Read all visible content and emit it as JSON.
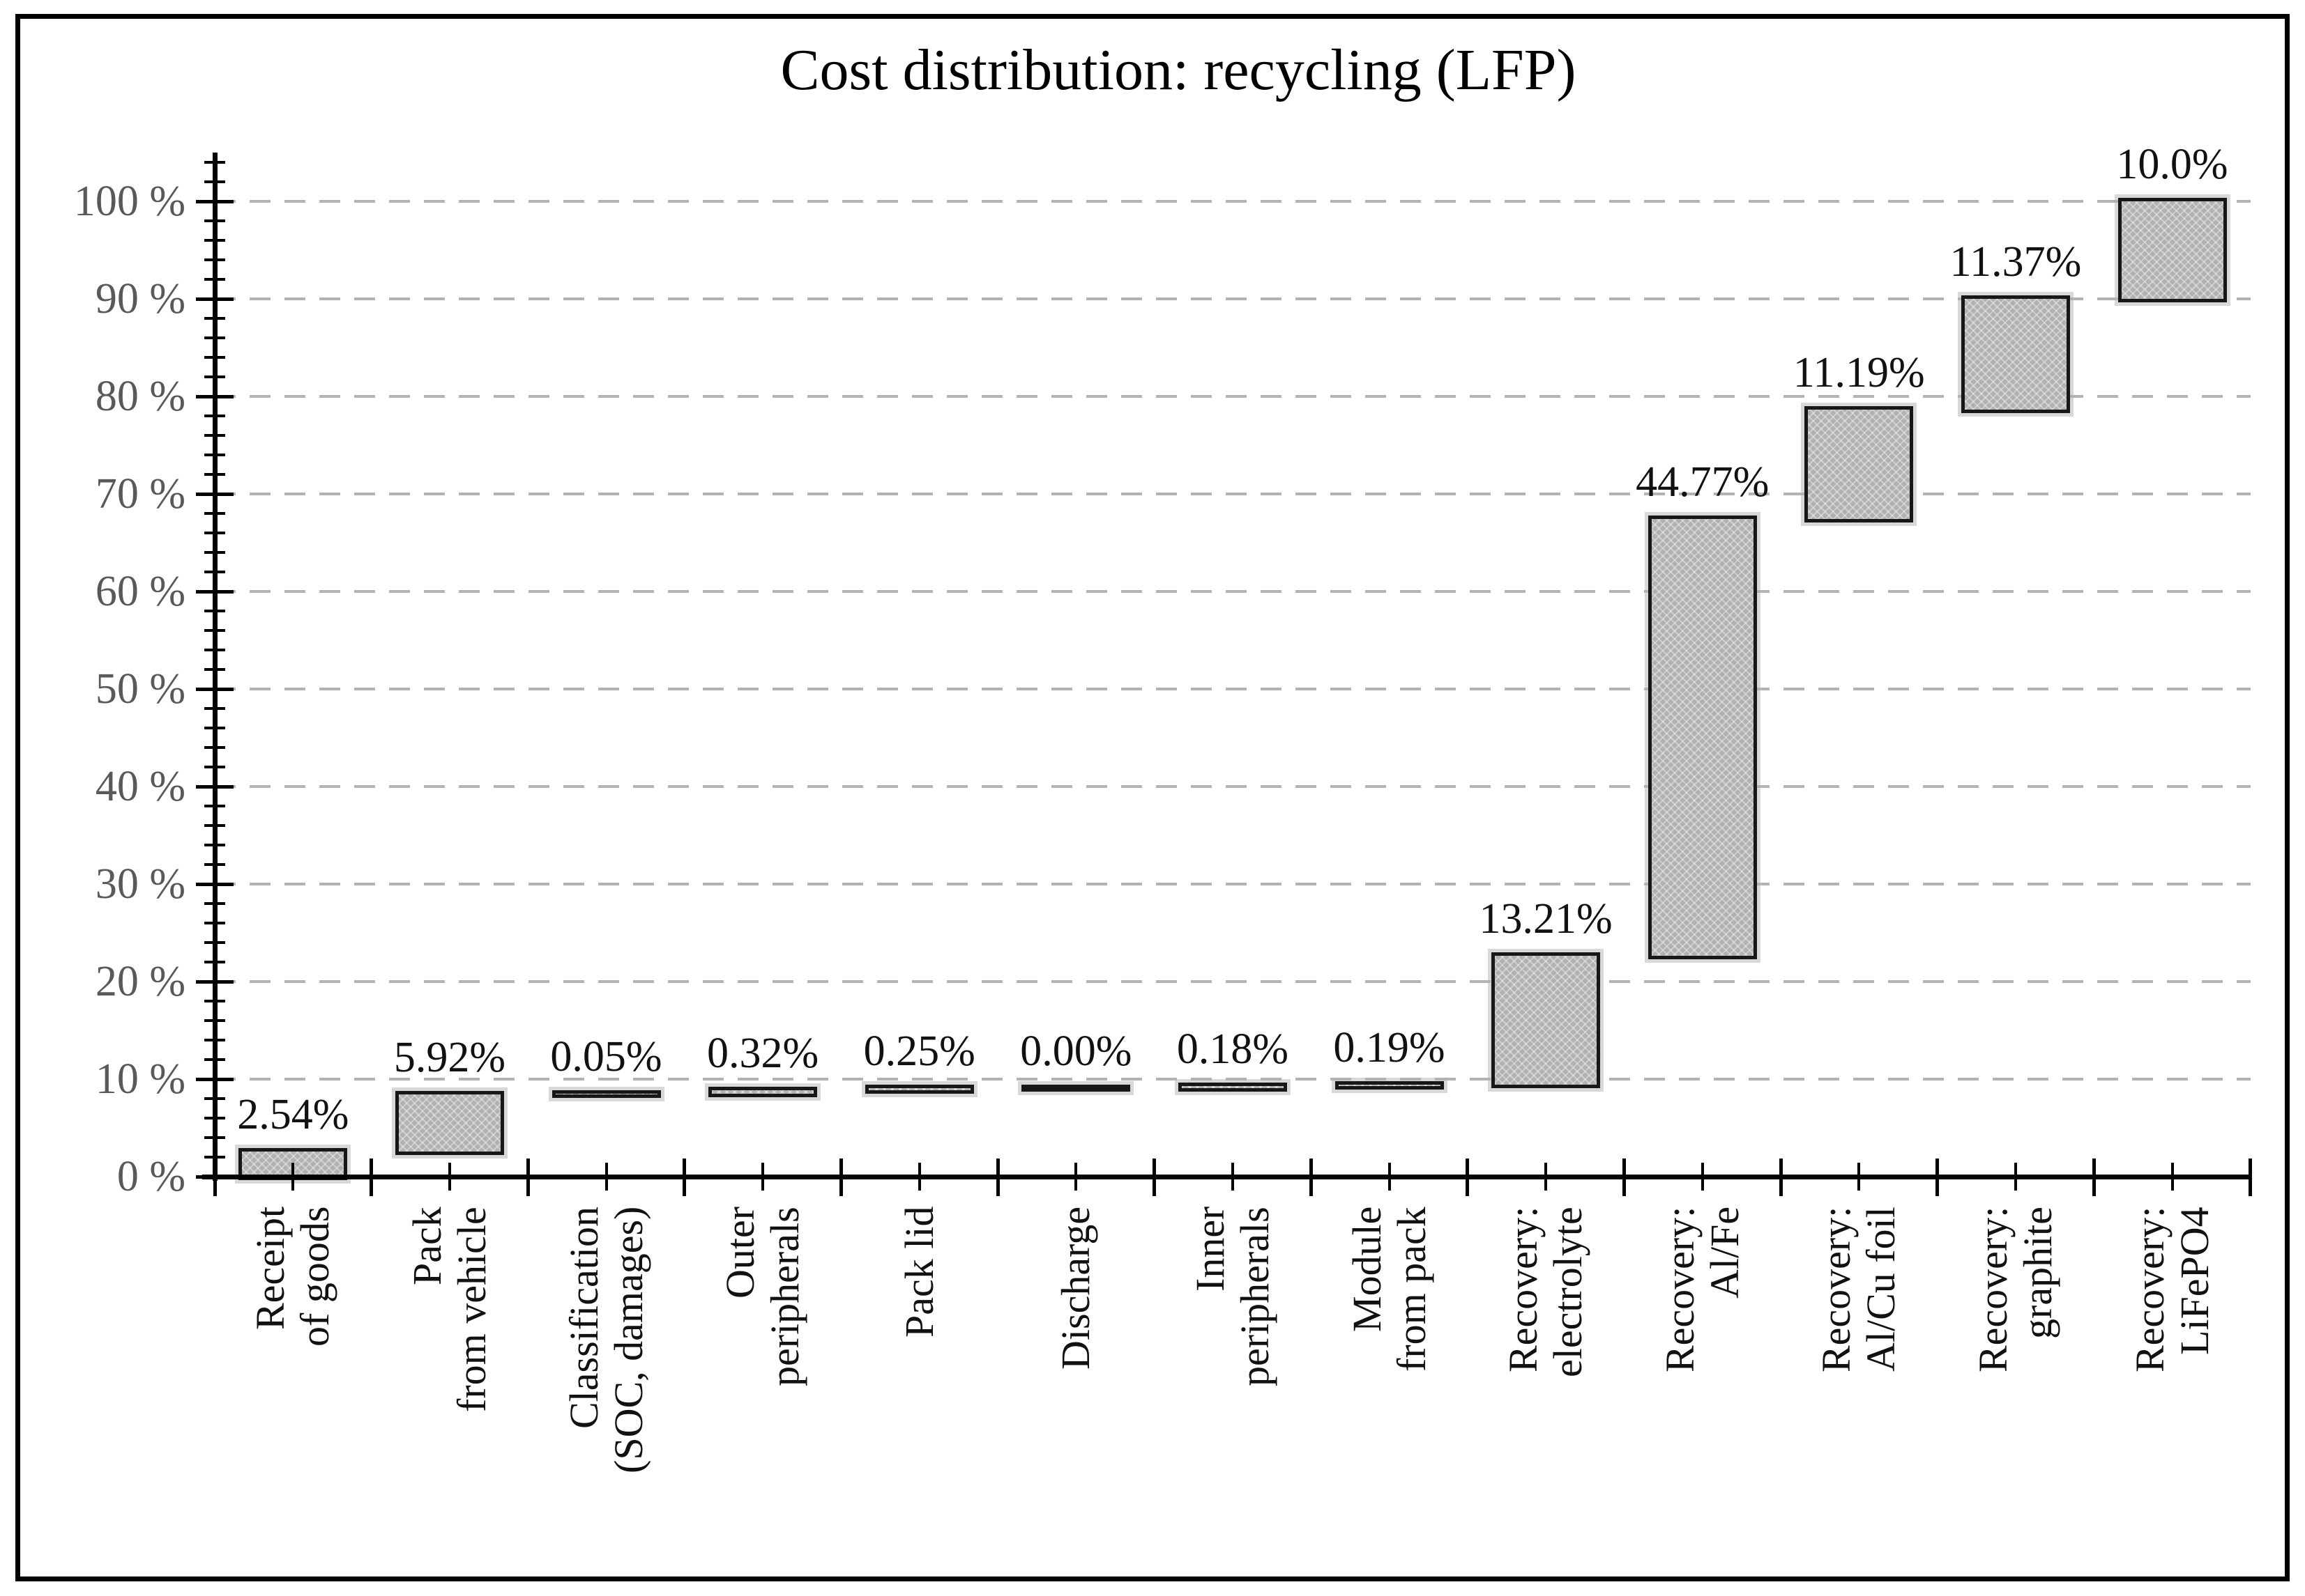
{
  "title": "Cost distribution: recycling (LFP)",
  "chart_data": {
    "type": "bar",
    "subtype": "waterfall-cumulative",
    "title": "Cost distribution: recycling (LFP)",
    "categories": [
      "Receipt\nof goods",
      "Pack\nfrom vehicle",
      "Classification\n(SOC, damages)",
      "Outer\nperipherals",
      "Pack lid",
      "Discharge",
      "Inner\nperipherals",
      "Module\nfrom pack",
      "Recovery:\nelectrolyte",
      "Recovery:\nAl/Fe",
      "Recovery:\nAl/Cu foil",
      "Recovery:\ngraphite",
      "Recovery:\nLiFePO4"
    ],
    "values": [
      2.54,
      5.92,
      0.05,
      0.32,
      0.25,
      0.0,
      0.18,
      0.19,
      13.21,
      44.77,
      11.19,
      11.37,
      10.0
    ],
    "data_labels": [
      "2.54%",
      "5.92%",
      "0.05%",
      "0.32%",
      "0.25%",
      "0.00%",
      "0.18%",
      "0.19%",
      "13.21%",
      "44.77%",
      "11.19%",
      "11.37%",
      "10.0%"
    ],
    "xlabel": "",
    "ylabel": "",
    "y_axis": {
      "min": 0,
      "max": 100,
      "major_step": 10,
      "minor_step": 2,
      "overshoot": 4,
      "tick_labels": [
        "0 %",
        "10 %",
        "20 %",
        "30 %",
        "40 %",
        "50 %",
        "60 %",
        "70 %",
        "80 %",
        "90 %",
        "100 %"
      ]
    },
    "grid": "horizontal dashed at each 10%",
    "legend": "none"
  },
  "colors": {
    "background": "#ffffff",
    "figure_border": "#000000",
    "axis": "#000000",
    "gridline": "#b3b3b3",
    "bar_fill": "#b1b1b1",
    "bar_border": "#171717",
    "title_text": "#000000",
    "data_label_text": "#111111",
    "y_tick_label_text": "#595959",
    "x_tick_label_text": "#111111"
  }
}
